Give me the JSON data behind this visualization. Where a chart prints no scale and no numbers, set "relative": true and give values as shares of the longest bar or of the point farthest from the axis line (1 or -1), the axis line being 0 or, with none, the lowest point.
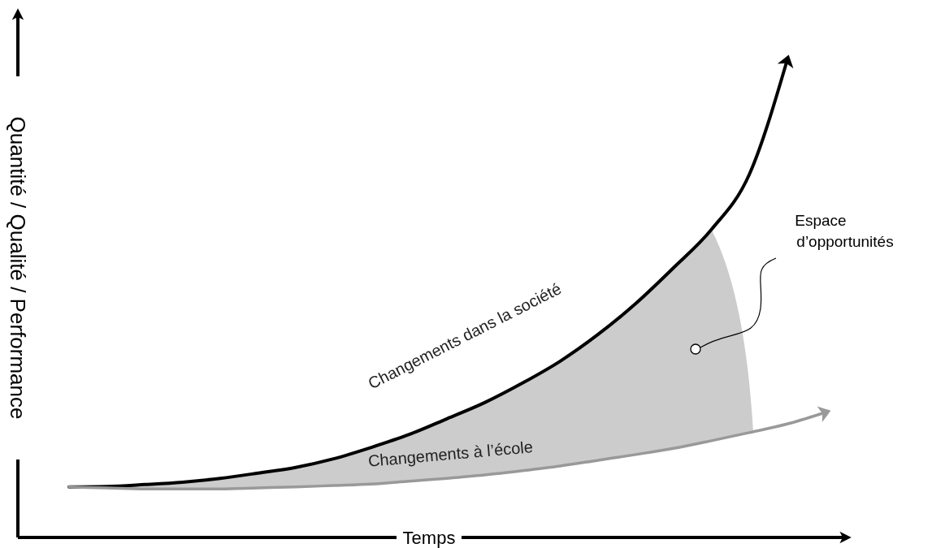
{
  "chart_data": {
    "type": "line",
    "relative": true,
    "xlabel": "Temps",
    "ylabel": "Quantité / Qualité / Performance",
    "categories": [
      null,
      null,
      null,
      null,
      null,
      null,
      null,
      null,
      null,
      null,
      null,
      null,
      null,
      null,
      null,
      null,
      null,
      null,
      null,
      null,
      null
    ],
    "series": [
      {
        "name": "Changements dans la société",
        "color": "#000000",
        "values": [
          0.106,
          0.107,
          0.111,
          0.116,
          0.124,
          0.135,
          0.147,
          0.165,
          0.189,
          0.216,
          0.249,
          0.283,
          0.324,
          0.37,
          0.426,
          0.491,
          0.566,
          0.646,
          0.761,
          1.0,
          null
        ]
      },
      {
        "name": "Changements à l’école",
        "color": "#999999",
        "values": [
          0.106,
          0.104,
          0.102,
          0.102,
          0.102,
          0.104,
          0.106,
          0.109,
          0.112,
          0.118,
          0.124,
          0.131,
          0.14,
          0.15,
          0.162,
          0.174,
          0.187,
          0.203,
          0.22,
          0.238,
          0.262
        ]
      }
    ],
    "annotations": [
      "Espace d’opportunités"
    ],
    "marker": "none",
    "line_style": "solid"
  }
}
